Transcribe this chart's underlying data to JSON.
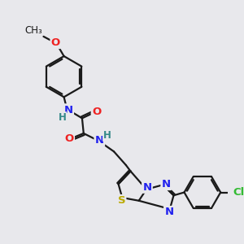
{
  "background_color": "#e8e8ec",
  "bond_color": "#1a1a1a",
  "atom_colors": {
    "N": "#2222ee",
    "O": "#ee2222",
    "S": "#bbaa00",
    "Cl": "#33bb33",
    "H": "#338888"
  },
  "figsize": [
    3.0,
    3.0
  ],
  "dpi": 100,
  "lw": 1.6,
  "fs": 9.5,
  "fs_small": 8.5
}
